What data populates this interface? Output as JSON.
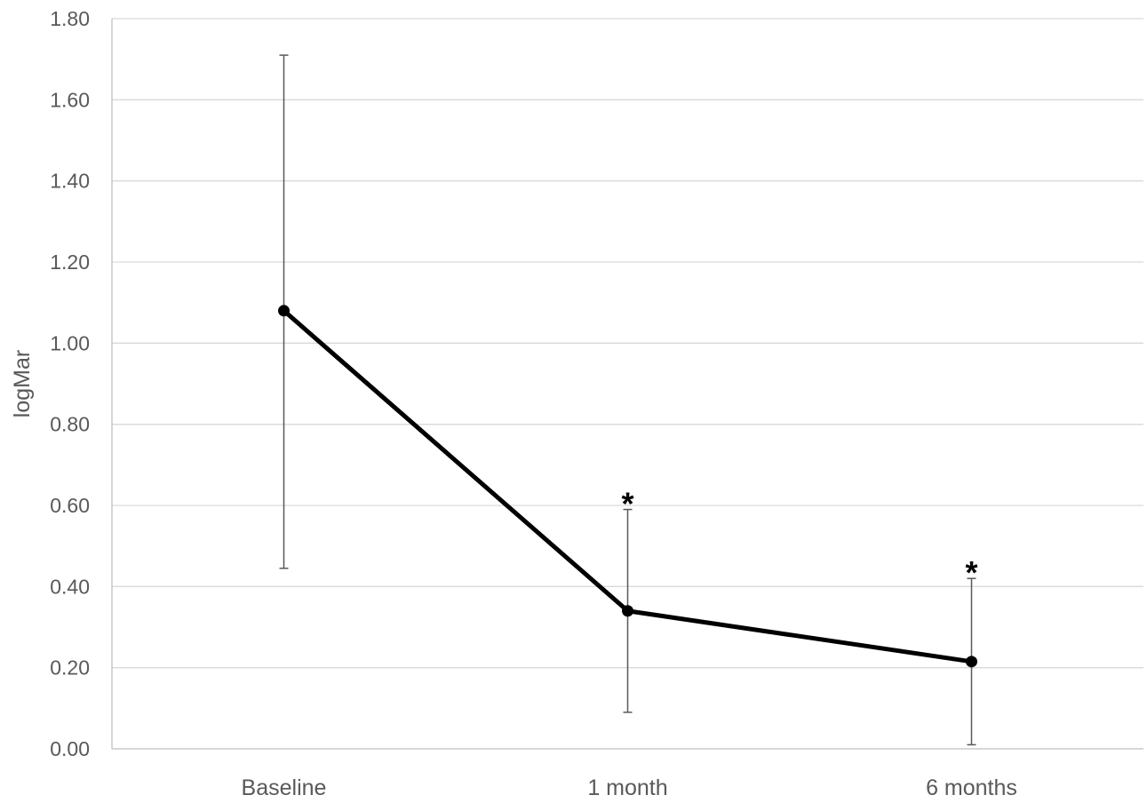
{
  "chart_data": {
    "type": "line",
    "title": "",
    "xlabel": "",
    "ylabel": "logMar",
    "categories": [
      "Baseline",
      "1 month",
      "6 months"
    ],
    "ylim": [
      0,
      1.8
    ],
    "yticks": [
      "0.00",
      "0.20",
      "0.40",
      "0.60",
      "0.80",
      "1.00",
      "1.20",
      "1.40",
      "1.60",
      "1.80"
    ],
    "grid": true,
    "legend": "none",
    "series": [
      {
        "values": [
          1.08,
          0.34,
          0.215
        ],
        "error_low": [
          0.445,
          0.09,
          0.01
        ],
        "error_high": [
          1.71,
          0.59,
          0.42
        ],
        "significance": [
          "",
          "*",
          "*"
        ],
        "color": "#000000"
      }
    ],
    "colors": {
      "line": "#000000",
      "error_bar": "#595959",
      "grid": "#d9d9d9",
      "axis": "#bfbfbf",
      "text": "#595959"
    }
  }
}
